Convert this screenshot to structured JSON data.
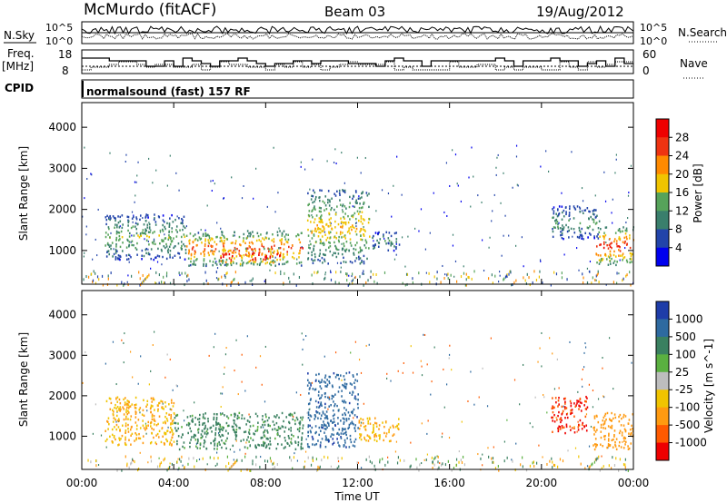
{
  "header": {
    "station": "McMurdo (fitACF)",
    "beam": "Beam 03",
    "date": "19/Aug/2012"
  },
  "noise_panel": {
    "left_label": "N.Sky",
    "right_label": "N.Search",
    "right_ticks": [
      "10^5",
      "10^0"
    ],
    "left_ticks": [
      "10^5",
      "10^0"
    ]
  },
  "freq_panel": {
    "left_label_line1": "Freq.",
    "left_label_line2": "[MHz]",
    "left_ticks": [
      "18",
      "8"
    ],
    "right_ticks": [
      "60",
      "0"
    ],
    "right_label": "Nave"
  },
  "cpid": {
    "label": "CPID",
    "value": "normalsound (fast) 157 RF"
  },
  "power_panel": {
    "ylabel": "Slant Range [km]",
    "yticks": [
      "1000",
      "2000",
      "3000",
      "4000"
    ],
    "colorbar_label": "Power [dB]",
    "colorbar_ticks": [
      "4",
      "8",
      "12",
      "16",
      "20",
      "24",
      "28"
    ],
    "colorbar_colors": [
      "#0000ee",
      "#2244aa",
      "#3a7f6c",
      "#56a35a",
      "#f0c400",
      "#ff8a00",
      "#ee3311",
      "#ee0000"
    ]
  },
  "velocity_panel": {
    "ylabel": "Slant Range [km]",
    "yticks": [
      "1000",
      "2000",
      "3000",
      "4000"
    ],
    "colorbar_label": "Velocity [m s^-1]",
    "colorbar_ticks": [
      "1000",
      "500",
      "100",
      "25",
      "-25",
      "-100",
      "-500",
      "-1000"
    ],
    "colorbar_colors": [
      "#1e3ca8",
      "#2e6aa0",
      "#3a8060",
      "#5ab040",
      "#bdbdbd",
      "#f0c400",
      "#ff9a10",
      "#ff5a00",
      "#ee0000"
    ]
  },
  "x_axis": {
    "ticks": [
      "00:00",
      "04:00",
      "08:00",
      "12:00",
      "16:00",
      "20:00",
      "00:00"
    ],
    "label": "Time UT"
  },
  "chart_data": {
    "type": "heatmap",
    "x_range_hours": [
      0,
      24
    ],
    "y_range_km": [
      180,
      4600
    ],
    "series": [
      {
        "panel": "power",
        "patches": [
          {
            "t": [
              1.0,
              4.5
            ],
            "r": [
              800,
              1900
            ],
            "level": 14
          },
          {
            "t": [
              4.5,
              9.6
            ],
            "r": [
              650,
              1500
            ],
            "level": 24
          },
          {
            "t": [
              6.0,
              8.6
            ],
            "r": [
              650,
              1100
            ],
            "level": 29
          },
          {
            "t": [
              9.8,
              12.5
            ],
            "r": [
              700,
              2500
            ],
            "level": 18
          },
          {
            "t": [
              12.6,
              13.8
            ],
            "r": [
              1000,
              1500
            ],
            "level": 10
          },
          {
            "t": [
              20.4,
              22.5
            ],
            "r": [
              1300,
              2100
            ],
            "level": 12
          },
          {
            "t": [
              22.3,
              24.0
            ],
            "r": [
              650,
              1600
            ],
            "level": 26
          }
        ]
      },
      {
        "panel": "velocity",
        "patches": [
          {
            "t": [
              1.0,
              4.0
            ],
            "r": [
              800,
              2000
            ],
            "level": -100
          },
          {
            "t": [
              4.0,
              9.6
            ],
            "r": [
              700,
              1600
            ],
            "level": 100
          },
          {
            "t": [
              9.8,
              12.0
            ],
            "r": [
              750,
              2600
            ],
            "level": 600
          },
          {
            "t": [
              12.0,
              13.8
            ],
            "r": [
              900,
              1500
            ],
            "level": -100
          },
          {
            "t": [
              20.4,
              22.0
            ],
            "r": [
              1100,
              2000
            ],
            "level": -800
          },
          {
            "t": [
              22.2,
              24.0
            ],
            "r": [
              700,
              1600
            ],
            "level": -200
          }
        ]
      }
    ]
  }
}
